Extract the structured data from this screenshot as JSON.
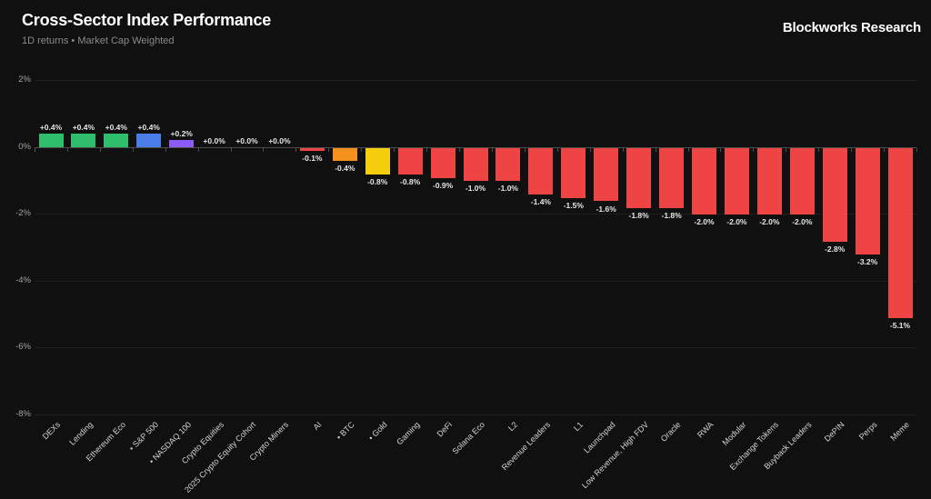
{
  "header": {
    "title": "Cross-Sector Index Performance",
    "subtitle": "1D returns • Market Cap Weighted",
    "brand": "Blockworks Research"
  },
  "colors": {
    "background": "#101010",
    "positive": "#2ebd6b",
    "negative": "#ef4444",
    "sp500_blue": "#4a7de8",
    "nasdaq_purple": "#8b5cf6",
    "btc_orange": "#f5921e",
    "gold_yellow": "#f7ce0e",
    "axis": "#4d4d4d",
    "grid": "#1f1f1f",
    "y_tick_text": "#a3a3a3",
    "category_text": "#d4d4d4",
    "value_text": "#e6e6e6"
  },
  "chart_data": {
    "type": "bar",
    "title": "Cross-Sector Index Performance",
    "subtitle": "1D returns • Market Cap Weighted",
    "unit": "%",
    "ylim": [
      -8,
      2
    ],
    "y_ticks": [
      2,
      0,
      -2,
      -4,
      -6,
      -8
    ],
    "y_tick_labels": [
      "2%",
      "0%",
      "-2%",
      "-4%",
      "-6%",
      "-8%"
    ],
    "grid": "horizontal-faint",
    "legend_position": "none",
    "bars": [
      {
        "category": "DEXs",
        "value": 0.4,
        "label": "+0.4%",
        "color": "#2ebd6b"
      },
      {
        "category": "Lending",
        "value": 0.4,
        "label": "+0.4%",
        "color": "#2ebd6b"
      },
      {
        "category": "Ethereum Eco",
        "value": 0.4,
        "label": "+0.4%",
        "color": "#2ebd6b"
      },
      {
        "category": "• S&P 500",
        "value": 0.4,
        "label": "+0.4%",
        "color": "#4a7de8"
      },
      {
        "category": "• NASDAQ 100",
        "value": 0.2,
        "label": "+0.2%",
        "color": "#8b5cf6"
      },
      {
        "category": "Crypto Equities",
        "value": 0.0,
        "label": "+0.0%",
        "color": "#2ebd6b"
      },
      {
        "category": "2025 Crypto Equity Cohort",
        "value": 0.0,
        "label": "+0.0%",
        "color": "#2ebd6b"
      },
      {
        "category": "Crypto Miners",
        "value": 0.0,
        "label": "+0.0%",
        "color": "#2ebd6b"
      },
      {
        "category": "AI",
        "value": -0.1,
        "label": "-0.1%",
        "color": "#ef4444"
      },
      {
        "category": "• BTC",
        "value": -0.4,
        "label": "-0.4%",
        "color": "#f5921e"
      },
      {
        "category": "• Gold",
        "value": -0.8,
        "label": "-0.8%",
        "color": "#f7ce0e"
      },
      {
        "category": "Gaming",
        "value": -0.8,
        "label": "-0.8%",
        "color": "#ef4444"
      },
      {
        "category": "DeFi",
        "value": -0.9,
        "label": "-0.9%",
        "color": "#ef4444"
      },
      {
        "category": "Solana Eco",
        "value": -1.0,
        "label": "-1.0%",
        "color": "#ef4444"
      },
      {
        "category": "L2",
        "value": -1.0,
        "label": "-1.0%",
        "color": "#ef4444"
      },
      {
        "category": "Revenue Leaders",
        "value": -1.4,
        "label": "-1.4%",
        "color": "#ef4444"
      },
      {
        "category": "L1",
        "value": -1.5,
        "label": "-1.5%",
        "color": "#ef4444"
      },
      {
        "category": "Launchpad",
        "value": -1.6,
        "label": "-1.6%",
        "color": "#ef4444"
      },
      {
        "category": "Low Revenue, High FDV",
        "value": -1.8,
        "label": "-1.8%",
        "color": "#ef4444"
      },
      {
        "category": "Oracle",
        "value": -1.8,
        "label": "-1.8%",
        "color": "#ef4444"
      },
      {
        "category": "RWA",
        "value": -2.0,
        "label": "-2.0%",
        "color": "#ef4444"
      },
      {
        "category": "Modular",
        "value": -2.0,
        "label": "-2.0%",
        "color": "#ef4444"
      },
      {
        "category": "Exchange Tokens",
        "value": -2.0,
        "label": "-2.0%",
        "color": "#ef4444"
      },
      {
        "category": "Buyback Leaders",
        "value": -2.0,
        "label": "-2.0%",
        "color": "#ef4444"
      },
      {
        "category": "DePIN",
        "value": -2.8,
        "label": "-2.8%",
        "color": "#ef4444"
      },
      {
        "category": "Perps",
        "value": -3.2,
        "label": "-3.2%",
        "color": "#ef4444"
      },
      {
        "category": "Meme",
        "value": -5.1,
        "label": "-5.1%",
        "color": "#ef4444"
      }
    ]
  }
}
